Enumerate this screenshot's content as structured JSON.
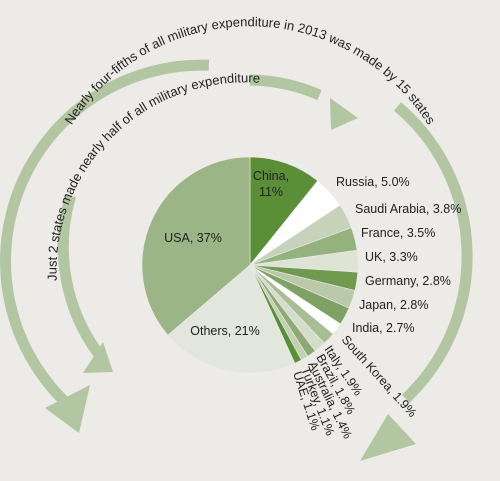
{
  "chart_data": {
    "type": "pie",
    "title": "",
    "slices": [
      {
        "label": "China",
        "value_text": "11%",
        "value": 11.0,
        "color": "#5a8f38"
      },
      {
        "label": "Russia",
        "value_text": "5.0%",
        "value": 5.0,
        "color": "#ffffff"
      },
      {
        "label": "Saudi Arabia",
        "value_text": "3.8%",
        "value": 3.8,
        "color": "#c7d2ba"
      },
      {
        "label": "France",
        "value_text": "3.5%",
        "value": 3.5,
        "color": "#93b27d"
      },
      {
        "label": "UK",
        "value_text": "3.3%",
        "value": 3.3,
        "color": "#dde4d4"
      },
      {
        "label": "Germany",
        "value_text": "2.8%",
        "value": 2.8,
        "color": "#6f9a50"
      },
      {
        "label": "Japan",
        "value_text": "2.8%",
        "value": 2.8,
        "color": "#b9c9aa"
      },
      {
        "label": "India",
        "value_text": "2.7%",
        "value": 2.7,
        "color": "#7da263"
      },
      {
        "label": "South Korea",
        "value_text": "1.9%",
        "value": 1.9,
        "color": "#ffffff"
      },
      {
        "label": "Italy",
        "value_text": "1.9%",
        "value": 1.9,
        "color": "#a7bd94"
      },
      {
        "label": "Brazil",
        "value_text": "1.8%",
        "value": 1.8,
        "color": "#d3ddc8"
      },
      {
        "label": "Australia",
        "value_text": "1.4%",
        "value": 1.4,
        "color": "#8daa75"
      },
      {
        "label": "Turkey",
        "value_text": "1.1%",
        "value": 1.1,
        "color": "#c2d0b3"
      },
      {
        "label": "UAE",
        "value_text": "1.1%",
        "value": 1.1,
        "color": "#5a8f38"
      },
      {
        "label": "Others",
        "value_text": "21%",
        "value": 21.0,
        "color": "#e2e6dc"
      },
      {
        "label": "USA",
        "value_text": "37%",
        "value": 37.0,
        "color": "#9cb587"
      }
    ],
    "annotations": [
      "Nearly four-fifths of all military expenditure in 2013 was made by 15 states",
      "Just 2 states made nearly half of all military expenditure"
    ]
  },
  "colors": {
    "background": "#ecebe8",
    "arrow": "#b3c6a2",
    "label_text": "#222222"
  }
}
